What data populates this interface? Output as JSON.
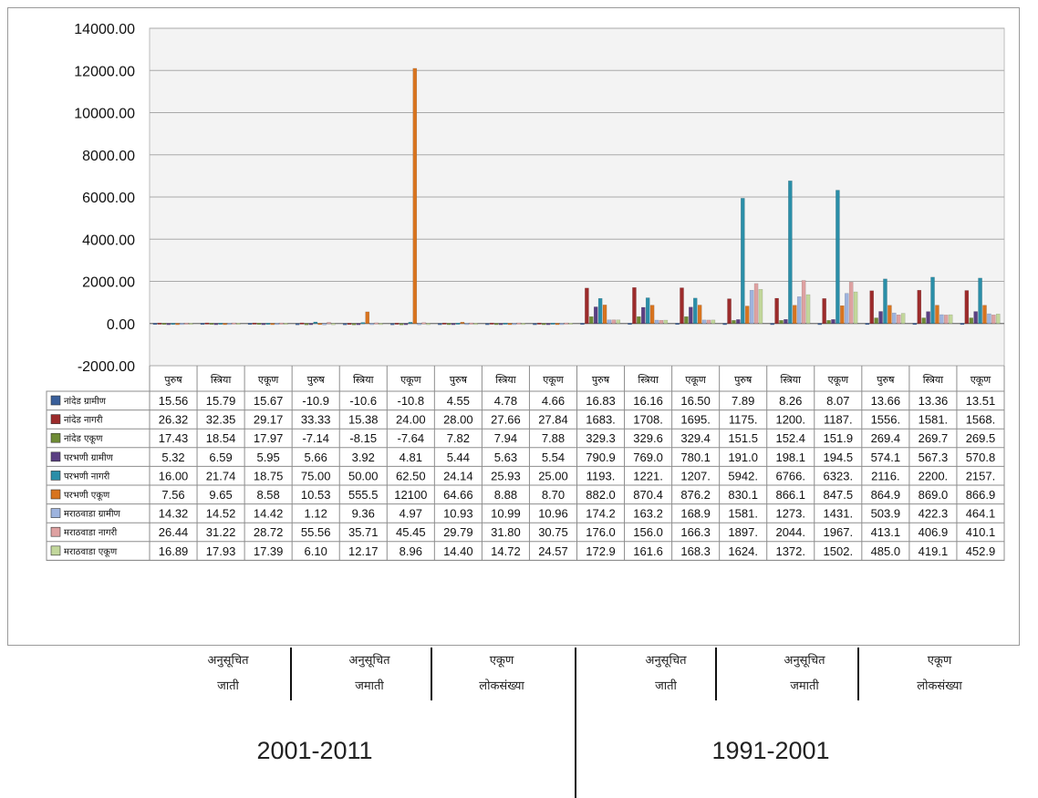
{
  "chart_data": {
    "type": "bar",
    "ylim": [
      -2000,
      14000
    ],
    "y_ticks": [
      "14000.00",
      "12000.00",
      "10000.00",
      "8000.00",
      "6000.00",
      "4000.00",
      "2000.00",
      "0.00",
      "-2000.00"
    ],
    "categories": [
      "पुरुष",
      "स्त्रिया",
      "एकूण",
      "पुरुष",
      "स्त्रिया",
      "एकूण",
      "पुरुष",
      "स्त्रिया",
      "एकूण",
      "पुरुष",
      "स्त्रिया",
      "एकूण",
      "पुरुष",
      "स्त्रिया",
      "एकूण",
      "पुरुष",
      "स्त्रिया",
      "एकूण"
    ],
    "grid": true,
    "legend_placement": "left of data table",
    "series": [
      {
        "name": "नांदेड ग्रामीण",
        "color": "#3a5f9a",
        "values": [
          15.56,
          15.79,
          15.67,
          -10.9,
          -10.6,
          -10.8,
          4.55,
          4.78,
          4.66,
          16.83,
          16.16,
          16.5,
          7.89,
          8.26,
          8.07,
          13.66,
          13.36,
          13.51
        ],
        "labels": [
          "15.56",
          "15.79",
          "15.67",
          "-10.9",
          "-10.6",
          "-10.8",
          "4.55",
          "4.78",
          "4.66",
          "16.83",
          "16.16",
          "16.50",
          "7.89",
          "8.26",
          "8.07",
          "13.66",
          "13.36",
          "13.51"
        ]
      },
      {
        "name": "नांदेड नागरी",
        "color": "#9c2b2b",
        "values": [
          26.32,
          32.35,
          29.17,
          33.33,
          15.38,
          24.0,
          28.0,
          27.66,
          27.84,
          1683,
          1708,
          1695,
          1175,
          1200,
          1187,
          1556,
          1581,
          1568
        ],
        "labels": [
          "26.32",
          "32.35",
          "29.17",
          "33.33",
          "15.38",
          "24.00",
          "28.00",
          "27.66",
          "27.84",
          "1683.",
          "1708.",
          "1695.",
          "1175.",
          "1200.",
          "1187.",
          "1556.",
          "1581.",
          "1568."
        ]
      },
      {
        "name": "नांदेड एकूण",
        "color": "#6e8b35",
        "values": [
          17.43,
          18.54,
          17.97,
          -7.14,
          -8.15,
          -7.64,
          7.82,
          7.94,
          7.88,
          329.3,
          329.6,
          329.4,
          151.5,
          152.4,
          151.9,
          269.4,
          269.7,
          269.5
        ],
        "labels": [
          "17.43",
          "18.54",
          "17.97",
          "-7.14",
          "-8.15",
          "-7.64",
          "7.82",
          "7.94",
          "7.88",
          "329.3",
          "329.6",
          "329.4",
          "151.5",
          "152.4",
          "151.9",
          "269.4",
          "269.7",
          "269.5"
        ]
      },
      {
        "name": "परभणी ग्रामीण",
        "color": "#5a3f82",
        "values": [
          5.32,
          6.59,
          5.95,
          5.66,
          3.92,
          4.81,
          5.44,
          5.63,
          5.54,
          790.9,
          769.0,
          780.1,
          191.0,
          198.1,
          194.5,
          574.1,
          567.3,
          570.8
        ],
        "labels": [
          "5.32",
          "6.59",
          "5.95",
          "5.66",
          "3.92",
          "4.81",
          "5.44",
          "5.63",
          "5.54",
          "790.9",
          "769.0",
          "780.1",
          "191.0",
          "198.1",
          "194.5",
          "574.1",
          "567.3",
          "570.8"
        ]
      },
      {
        "name": "परभणी नागरी",
        "color": "#2a8ea8",
        "values": [
          16.0,
          21.74,
          18.75,
          75.0,
          50.0,
          62.5,
          24.14,
          25.93,
          25.0,
          1193,
          1221,
          1207,
          5942,
          6766,
          6323,
          2116,
          2200,
          2157
        ],
        "labels": [
          "16.00",
          "21.74",
          "18.75",
          "75.00",
          "50.00",
          "62.50",
          "24.14",
          "25.93",
          "25.00",
          "1193.",
          "1221.",
          "1207.",
          "5942.",
          "6766.",
          "6323.",
          "2116.",
          "2200.",
          "2157."
        ]
      },
      {
        "name": "परभणी एकूण",
        "color": "#d8741f",
        "values": [
          7.56,
          9.65,
          8.58,
          10.53,
          555.5,
          12100,
          64.66,
          8.88,
          8.7,
          882.0,
          870.4,
          876.2,
          830.1,
          866.1,
          847.5,
          864.9,
          869.0,
          866.9
        ],
        "labels": [
          "7.56",
          "9.65",
          "8.58",
          "10.53",
          "555.5",
          "12100",
          "64.66",
          "8.88",
          "8.70",
          "882.0",
          "870.4",
          "876.2",
          "830.1",
          "866.1",
          "847.5",
          "864.9",
          "869.0",
          "866.9"
        ]
      },
      {
        "name": "मराठवाडा ग्रामीण",
        "color": "#9db3de",
        "values": [
          14.32,
          14.52,
          14.42,
          1.12,
          9.36,
          4.97,
          10.93,
          10.99,
          10.96,
          174.2,
          163.2,
          168.9,
          1581,
          1273,
          1431,
          503.9,
          422.3,
          464.1
        ],
        "labels": [
          "14.32",
          "14.52",
          "14.42",
          "1.12",
          "9.36",
          "4.97",
          "10.93",
          "10.99",
          "10.96",
          "174.2",
          "163.2",
          "168.9",
          "1581.",
          "1273.",
          "1431.",
          "503.9",
          "422.3",
          "464.1"
        ]
      },
      {
        "name": "मराठवाडा नागरी",
        "color": "#dea1a1",
        "values": [
          26.44,
          31.22,
          28.72,
          55.56,
          35.71,
          45.45,
          29.79,
          31.8,
          30.75,
          176.0,
          156.0,
          166.3,
          1897,
          2044,
          1967,
          413.1,
          406.9,
          410.1
        ],
        "labels": [
          "26.44",
          "31.22",
          "28.72",
          "55.56",
          "35.71",
          "45.45",
          "29.79",
          "31.80",
          "30.75",
          "176.0",
          "156.0",
          "166.3",
          "1897.",
          "2044.",
          "1967.",
          "413.1",
          "406.9",
          "410.1"
        ]
      },
      {
        "name": "मराठवाडा एकूण",
        "color": "#c2d79b",
        "values": [
          16.89,
          17.93,
          17.39,
          6.1,
          12.17,
          8.96,
          14.4,
          14.72,
          24.57,
          172.9,
          161.6,
          168.3,
          1624,
          1372,
          1502,
          485.0,
          419.1,
          452.9
        ],
        "labels": [
          "16.89",
          "17.93",
          "17.39",
          "6.10",
          "12.17",
          "8.96",
          "14.40",
          "14.72",
          "24.57",
          "172.9",
          "161.6",
          "168.3",
          "1624.",
          "1372.",
          "1502.",
          "485.0",
          "419.1",
          "452.9"
        ]
      }
    ]
  },
  "annotations": {
    "groups": [
      {
        "line1": "अनुसूचित",
        "line2": "जाती"
      },
      {
        "line1": "अनुसूचित",
        "line2": "जमाती"
      },
      {
        "line1": "एकूण",
        "line2": "लोकसंख्या"
      },
      {
        "line1": "अनुसूचित",
        "line2": "जाती"
      },
      {
        "line1": "अनुसूचित",
        "line2": "जमाती"
      },
      {
        "line1": "एकूण",
        "line2": "लोकसंख्या"
      }
    ],
    "periods": [
      "2001-2011",
      "1991-2001"
    ]
  }
}
